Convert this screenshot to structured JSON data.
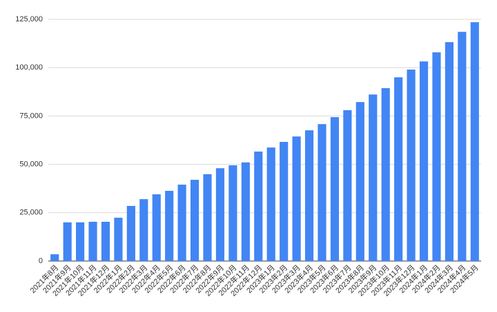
{
  "chart_data": {
    "type": "bar",
    "categories": [
      "2021年8月",
      "2021年9月",
      "2021年10月",
      "2021年11月",
      "2021年12月",
      "2022年1月",
      "2022年2月",
      "2022年3月",
      "2022年4月",
      "2022年5月",
      "2022年6月",
      "2022年7月",
      "2022年8月",
      "2022年9月",
      "2022年10月",
      "2022年11月",
      "2022年12月",
      "2023年1月",
      "2023年2月",
      "2023年3月",
      "2023年4月",
      "2023年5月",
      "2023年6月",
      "2023年7月",
      "2023年8月",
      "2023年9月",
      "2023年10月",
      "2023年11月",
      "2023年12月",
      "2024年1月",
      "2024年2月",
      "2024年3月",
      "2024年4月",
      "2024年5月"
    ],
    "values": [
      3500,
      20000,
      20000,
      20300,
      20300,
      22400,
      28500,
      32000,
      34500,
      36300,
      39500,
      42000,
      44900,
      48000,
      49500,
      51000,
      56600,
      58700,
      61600,
      64400,
      67600,
      70800,
      74400,
      78000,
      82200,
      86100,
      89400,
      95000,
      99000,
      103200,
      107900,
      113200,
      118500,
      123500
    ],
    "color": "#4285f4",
    "ylim": [
      0,
      125000
    ],
    "yticks": [
      0,
      {
        "value": 25000,
        "label": "25,000"
      },
      {
        "value": 50000,
        "label": "50,000"
      },
      {
        "value": 75000,
        "label": "75,000"
      },
      {
        "value": 100000,
        "label": "100,000"
      },
      {
        "value": 125000,
        "label": "125,000"
      }
    ],
    "grid": true
  }
}
